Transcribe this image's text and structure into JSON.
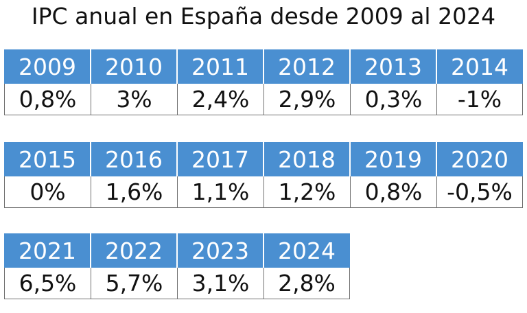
{
  "title": "IPC anual en España desde 2009 al 2024",
  "chart_data": {
    "type": "table",
    "title": "IPC anual en España desde 2009 al 2024",
    "blocks": [
      {
        "years": [
          "2009",
          "2010",
          "2011",
          "2012",
          "2013",
          "2014"
        ],
        "values": [
          "0,8%",
          "3%",
          "2,4%",
          "2,9%",
          "0,3%",
          "-1%"
        ]
      },
      {
        "years": [
          "2015",
          "2016",
          "2017",
          "2018",
          "2019",
          "2020"
        ],
        "values": [
          "0%",
          "1,6%",
          "1,1%",
          "1,2%",
          "0,8%",
          "-0,5%"
        ]
      },
      {
        "years": [
          "2021",
          "2022",
          "2023",
          "2024"
        ],
        "values": [
          "6,5%",
          "5,7%",
          "3,1%",
          "2,8%"
        ]
      }
    ]
  },
  "colors": {
    "header_bg": "#4a8fd1",
    "header_text": "#ffffff",
    "value_text": "#111111",
    "border": "#6e6e6e"
  }
}
